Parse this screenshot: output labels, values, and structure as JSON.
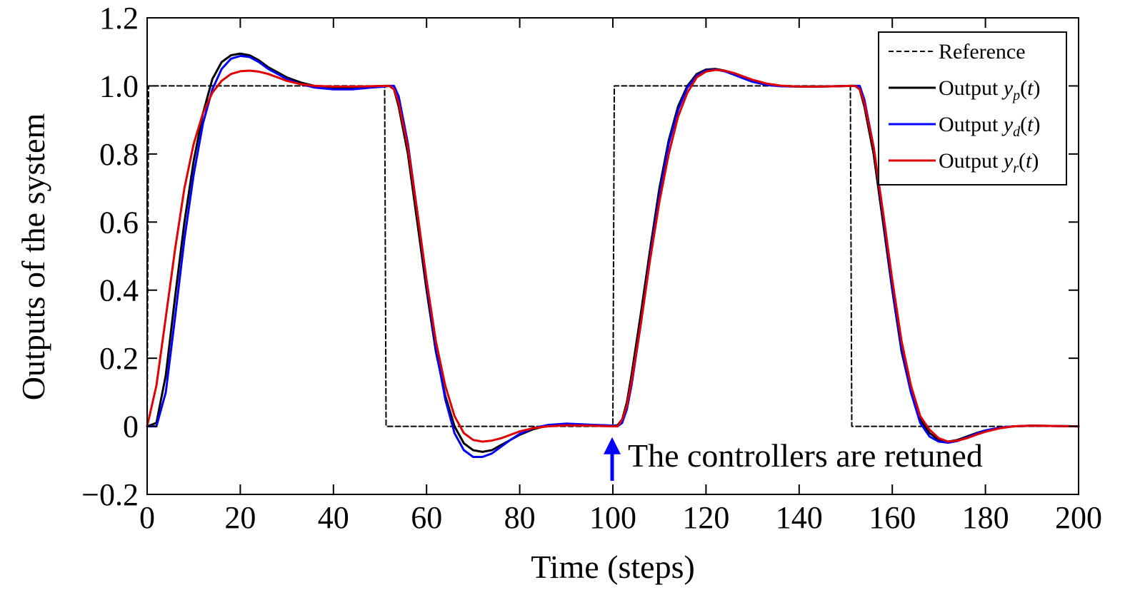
{
  "chart_data": {
    "type": "line",
    "xlabel": "Time (steps)",
    "ylabel": "Outputs of the system",
    "xlim": [
      0,
      200
    ],
    "ylim": [
      -0.2,
      1.2
    ],
    "x_ticks": [
      "0",
      "20",
      "40",
      "60",
      "80",
      "100",
      "120",
      "140",
      "160",
      "180",
      "200"
    ],
    "y_ticks": [
      "−0.2",
      "0",
      "0.2",
      "0.4",
      "0.6",
      "0.8",
      "1.0",
      "1.2"
    ],
    "grid": false,
    "legend_position": "top-right",
    "series": [
      {
        "name": "Reference",
        "color": "#000000",
        "style": "dashed",
        "x": [
          0,
          0.3,
          51,
          51.3,
          100,
          100.3,
          151,
          151.3,
          200
        ],
        "y": [
          0,
          1,
          1,
          0,
          0,
          1,
          1,
          0,
          0
        ]
      },
      {
        "name": "Output y_p(t)",
        "color": "#000000",
        "style": "solid",
        "x": [
          0,
          2,
          4,
          6,
          8,
          10,
          12,
          14,
          16,
          18,
          20,
          22,
          24,
          26,
          28,
          30,
          33,
          36,
          40,
          44,
          48,
          51,
          52,
          53,
          54,
          56,
          58,
          60,
          62,
          64,
          66,
          68,
          70,
          72,
          74,
          76,
          78,
          80,
          83,
          86,
          90,
          95,
          100,
          101,
          102,
          103,
          104,
          106,
          108,
          110,
          112,
          114,
          116,
          118,
          120,
          122,
          124,
          126,
          128,
          130,
          133,
          136,
          140,
          144,
          148,
          151,
          152,
          153,
          154,
          156,
          158,
          160,
          162,
          164,
          166,
          168,
          170,
          172,
          174,
          176,
          178,
          180,
          183,
          186,
          190,
          195,
          200
        ],
        "y": [
          0,
          0.01,
          0.15,
          0.38,
          0.6,
          0.78,
          0.92,
          1.02,
          1.07,
          1.09,
          1.095,
          1.09,
          1.075,
          1.055,
          1.04,
          1.025,
          1.01,
          1.0,
          0.995,
          0.995,
          0.998,
          1.0,
          1.0,
          0.99,
          0.94,
          0.8,
          0.6,
          0.4,
          0.22,
          0.09,
          0.0,
          -0.05,
          -0.07,
          -0.075,
          -0.07,
          -0.055,
          -0.04,
          -0.025,
          -0.008,
          0.002,
          0.006,
          0.004,
          0.002,
          0.003,
          0.02,
          0.07,
          0.15,
          0.33,
          0.52,
          0.7,
          0.84,
          0.94,
          1.0,
          1.035,
          1.048,
          1.05,
          1.045,
          1.035,
          1.025,
          1.015,
          1.005,
          1.0,
          0.998,
          0.998,
          0.999,
          1.0,
          1.0,
          0.99,
          0.94,
          0.8,
          0.6,
          0.4,
          0.22,
          0.1,
          0.02,
          -0.02,
          -0.04,
          -0.045,
          -0.04,
          -0.03,
          -0.02,
          -0.012,
          -0.004,
          0.0,
          0.002,
          0.001,
          0.0
        ]
      },
      {
        "name": "Output y_d(t)",
        "color": "#0000ff",
        "style": "solid",
        "x": [
          0,
          2,
          4,
          6,
          8,
          10,
          12,
          14,
          16,
          18,
          20,
          22,
          24,
          26,
          28,
          30,
          33,
          36,
          40,
          44,
          48,
          51,
          52,
          53,
          54,
          56,
          58,
          60,
          62,
          64,
          66,
          68,
          70,
          72,
          74,
          76,
          78,
          80,
          83,
          86,
          90,
          95,
          100,
          101,
          102,
          103,
          104,
          106,
          108,
          110,
          112,
          114,
          116,
          118,
          120,
          122,
          124,
          126,
          128,
          130,
          133,
          136,
          140,
          144,
          148,
          151,
          152,
          153,
          154,
          156,
          158,
          160,
          162,
          164,
          166,
          168,
          170,
          172,
          174,
          176,
          178,
          180,
          183,
          186,
          190,
          195,
          200
        ],
        "y": [
          0,
          0.0,
          0.1,
          0.32,
          0.55,
          0.74,
          0.89,
          0.99,
          1.05,
          1.08,
          1.088,
          1.085,
          1.07,
          1.05,
          1.035,
          1.02,
          1.005,
          0.995,
          0.99,
          0.99,
          0.995,
          0.998,
          1.0,
          1.0,
          0.97,
          0.83,
          0.63,
          0.42,
          0.23,
          0.08,
          -0.02,
          -0.07,
          -0.09,
          -0.09,
          -0.08,
          -0.06,
          -0.04,
          -0.022,
          -0.005,
          0.004,
          0.008,
          0.005,
          0.002,
          0.0,
          0.01,
          0.05,
          0.12,
          0.3,
          0.5,
          0.68,
          0.83,
          0.93,
          0.995,
          1.03,
          1.045,
          1.048,
          1.043,
          1.033,
          1.022,
          1.012,
          1.003,
          0.999,
          0.998,
          0.998,
          0.999,
          1.0,
          1.0,
          1.0,
          0.96,
          0.82,
          0.62,
          0.41,
          0.23,
          0.1,
          0.01,
          -0.03,
          -0.045,
          -0.048,
          -0.043,
          -0.033,
          -0.022,
          -0.012,
          -0.004,
          0.0,
          0.002,
          0.001,
          0.0
        ]
      },
      {
        "name": "Output y_r(t)",
        "color": "#e00000",
        "style": "solid",
        "x": [
          0,
          2,
          4,
          6,
          8,
          10,
          12,
          14,
          16,
          18,
          20,
          22,
          24,
          26,
          28,
          30,
          33,
          36,
          40,
          44,
          48,
          51,
          52,
          53,
          54,
          56,
          58,
          60,
          62,
          64,
          66,
          68,
          70,
          72,
          74,
          76,
          78,
          80,
          83,
          86,
          90,
          95,
          100,
          101,
          102,
          103,
          104,
          106,
          108,
          110,
          112,
          114,
          116,
          118,
          120,
          122,
          124,
          126,
          128,
          130,
          133,
          136,
          140,
          144,
          148,
          151,
          152,
          153,
          154,
          156,
          158,
          160,
          162,
          164,
          166,
          168,
          170,
          172,
          174,
          176,
          178,
          180,
          183,
          186,
          190,
          195,
          200
        ],
        "y": [
          0,
          0.12,
          0.32,
          0.52,
          0.7,
          0.83,
          0.92,
          0.98,
          1.015,
          1.035,
          1.043,
          1.045,
          1.042,
          1.035,
          1.025,
          1.015,
          1.005,
          1.0,
          0.998,
          0.998,
          0.999,
          1.0,
          1.0,
          0.99,
          0.95,
          0.82,
          0.63,
          0.43,
          0.25,
          0.12,
          0.03,
          -0.02,
          -0.04,
          -0.045,
          -0.042,
          -0.035,
          -0.025,
          -0.015,
          -0.005,
          0.0,
          0.003,
          0.002,
          0.0,
          0.0,
          0.02,
          0.06,
          0.13,
          0.3,
          0.49,
          0.66,
          0.8,
          0.91,
          0.98,
          1.025,
          1.042,
          1.047,
          1.045,
          1.038,
          1.028,
          1.018,
          1.007,
          1.001,
          0.998,
          0.998,
          0.999,
          1.0,
          1.0,
          0.99,
          0.95,
          0.82,
          0.63,
          0.43,
          0.25,
          0.12,
          0.03,
          -0.01,
          -0.035,
          -0.045,
          -0.042,
          -0.035,
          -0.025,
          -0.016,
          -0.006,
          0.0,
          0.002,
          0.001,
          0.0
        ]
      }
    ],
    "legend": [
      {
        "label": "Reference",
        "series": 0
      },
      {
        "label": "Output ",
        "var": "y",
        "sub": "p",
        "tail": "(t)",
        "series": 1
      },
      {
        "label": "Output ",
        "var": "y",
        "sub": "d",
        "tail": "(t)",
        "series": 2
      },
      {
        "label": "Output ",
        "var": "y",
        "sub": "r",
        "tail": "(t)",
        "series": 3
      }
    ],
    "annotation": {
      "text": "The controllers are retuned",
      "x": 100,
      "y": -0.015,
      "arrow_color": "#0000ff"
    }
  }
}
